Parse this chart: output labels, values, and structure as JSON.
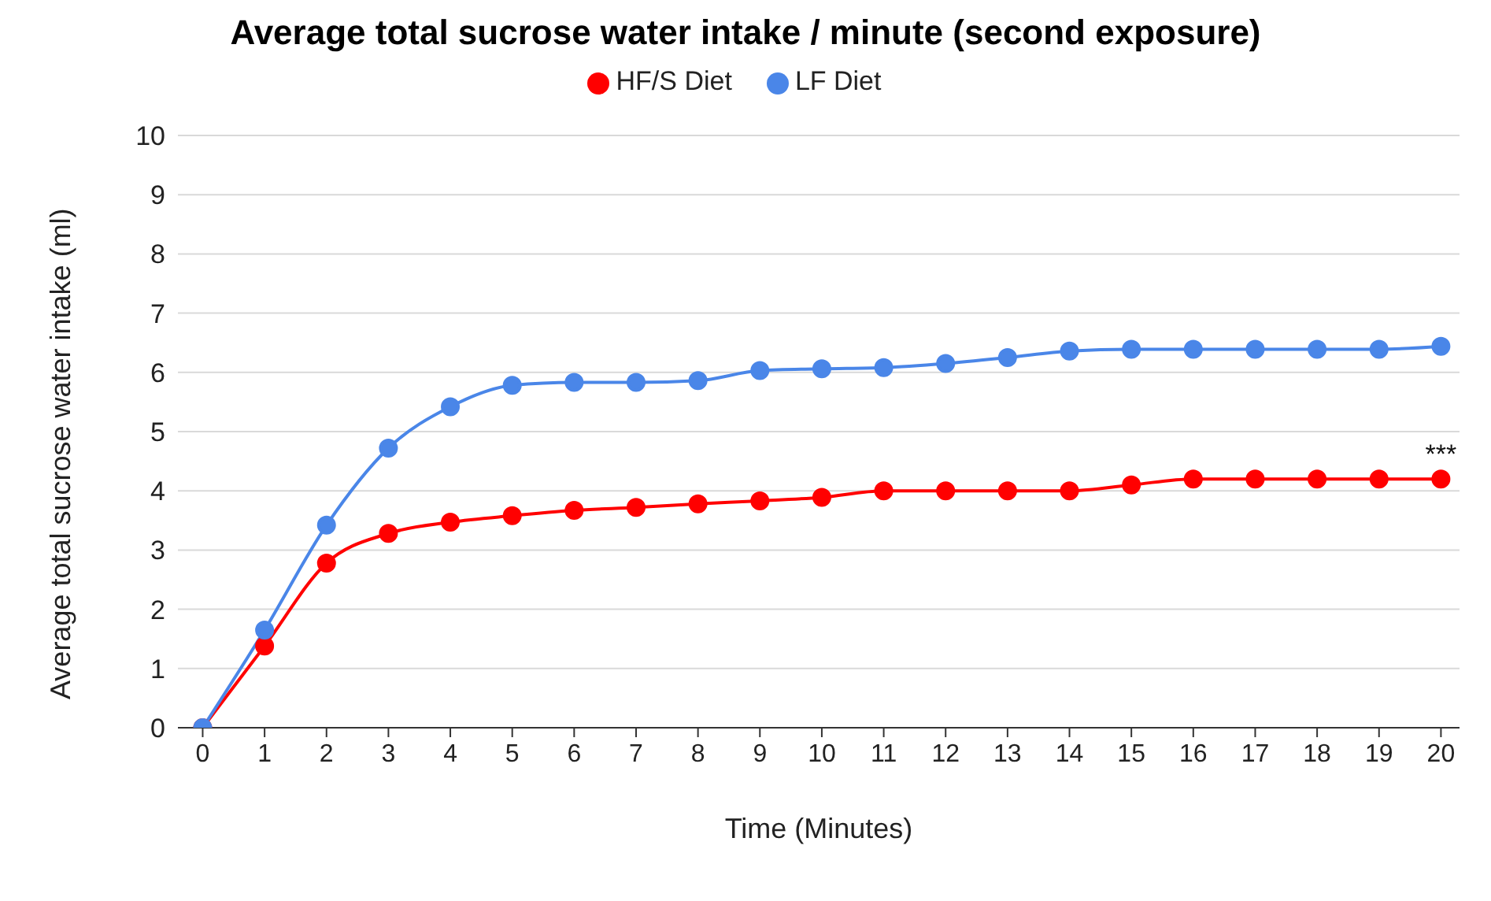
{
  "chart_data": {
    "type": "line",
    "title": "Average total sucrose water intake / minute (second exposure)",
    "xlabel": "Time (Minutes)",
    "ylabel": "Average total sucrose water intake (ml)",
    "x": [
      0,
      1,
      2,
      3,
      4,
      5,
      6,
      7,
      8,
      9,
      10,
      11,
      12,
      13,
      14,
      15,
      16,
      17,
      18,
      19,
      20
    ],
    "series": [
      {
        "name": "HF/S Diet",
        "color": "#ff0000",
        "values": [
          0,
          1.38,
          2.78,
          3.28,
          3.47,
          3.58,
          3.67,
          3.72,
          3.78,
          3.83,
          3.89,
          4.0,
          4.0,
          4.0,
          4.0,
          4.1,
          4.2,
          4.2,
          4.2,
          4.2,
          4.2
        ]
      },
      {
        "name": "LF Diet",
        "color": "#4a86e8",
        "values": [
          0,
          1.65,
          3.42,
          4.72,
          5.42,
          5.78,
          5.83,
          5.83,
          5.86,
          6.03,
          6.06,
          6.08,
          6.15,
          6.25,
          6.36,
          6.39,
          6.39,
          6.39,
          6.39,
          6.39,
          6.44
        ]
      }
    ],
    "xlim": [
      -0.4,
      20.3
    ],
    "xticks": [
      0,
      1,
      2,
      3,
      4,
      5,
      6,
      7,
      8,
      9,
      10,
      11,
      12,
      13,
      14,
      15,
      16,
      17,
      18,
      19,
      20
    ],
    "ylim": [
      0,
      10
    ],
    "yticks": [
      0,
      1,
      2,
      3,
      4,
      5,
      6,
      7,
      8,
      9,
      10
    ],
    "grid": "y",
    "legend": "top",
    "marker": "circle",
    "line_style": "solid",
    "annotations": [
      {
        "text": "***",
        "x": 20,
        "y": 4.2
      }
    ]
  }
}
